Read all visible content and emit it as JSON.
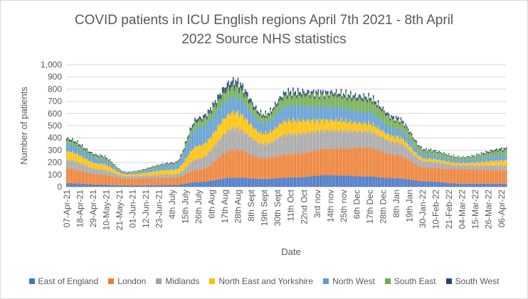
{
  "chart_data": {
    "type": "bar",
    "stacked": true,
    "title_line1": "COVID patients in ICU English regions April 7th 2021 - 8th April",
    "title_line2": "2022  Source NHS statistics",
    "xlabel": "Date",
    "ylabel": "Number of patients",
    "ylim": [
      0,
      1000
    ],
    "yticks": [
      "0",
      "100",
      "200",
      "300",
      "400",
      "500",
      "600",
      "700",
      "800",
      "900",
      "1,000"
    ],
    "grid": true,
    "legend_position": "bottom",
    "x_tick_labels": [
      "07-Apr-21",
      "18-Apr-21",
      "29-Apr-21",
      "10-May-21",
      "21-May-21",
      "01-Jun-21",
      "12-Jun-21",
      "23-Jun-21",
      "4th July",
      "15th July",
      "26th July",
      "6th Aug",
      "17th Aug",
      "28th Aug",
      "8th Sept",
      "19th Sept",
      "30th Sept",
      "11th Oct",
      "22nd Oct",
      "3rd nov",
      "14th nov",
      "25th nov",
      "6th Dec",
      "17th Dec",
      "28th Dec",
      "8th Jan",
      "19th Jan",
      "30-Jan-22",
      "10-Feb-22",
      "21-Feb-22",
      "04-Mar-22",
      "15-Mar-22",
      "26-Mar-22",
      "06-Apr-22"
    ],
    "x_tick_every_days": 11,
    "total_days": 367,
    "series": [
      {
        "name": "East of England",
        "color": "#4472c4",
        "knots": [
          [
            0,
            30
          ],
          [
            28,
            18
          ],
          [
            50,
            12
          ],
          [
            90,
            15
          ],
          [
            110,
            40
          ],
          [
            140,
            75
          ],
          [
            165,
            65
          ],
          [
            185,
            75
          ],
          [
            220,
            95
          ],
          [
            250,
            85
          ],
          [
            275,
            70
          ],
          [
            300,
            45
          ],
          [
            330,
            25
          ],
          [
            367,
            25
          ]
        ]
      },
      {
        "name": "London",
        "color": "#ed7d31",
        "knots": [
          [
            0,
            120
          ],
          [
            28,
            80
          ],
          [
            50,
            55
          ],
          [
            90,
            60
          ],
          [
            110,
            100
          ],
          [
            140,
            230
          ],
          [
            165,
            170
          ],
          [
            185,
            190
          ],
          [
            220,
            215
          ],
          [
            250,
            235
          ],
          [
            275,
            190
          ],
          [
            300,
            110
          ],
          [
            330,
            120
          ],
          [
            367,
            110
          ]
        ]
      },
      {
        "name": "Midlands",
        "color": "#a5a5a5",
        "knots": [
          [
            0,
            70
          ],
          [
            28,
            45
          ],
          [
            50,
            20
          ],
          [
            90,
            25
          ],
          [
            110,
            90
          ],
          [
            140,
            175
          ],
          [
            165,
            115
          ],
          [
            185,
            165
          ],
          [
            220,
            150
          ],
          [
            250,
            135
          ],
          [
            275,
            105
          ],
          [
            300,
            50
          ],
          [
            330,
            30
          ],
          [
            367,
            40
          ]
        ]
      },
      {
        "name": "North East and Yorkshire",
        "color": "#ffc000",
        "knots": [
          [
            0,
            70
          ],
          [
            28,
            45
          ],
          [
            50,
            15
          ],
          [
            90,
            40
          ],
          [
            110,
            105
          ],
          [
            140,
            130
          ],
          [
            165,
            85
          ],
          [
            185,
            110
          ],
          [
            220,
            85
          ],
          [
            250,
            65
          ],
          [
            275,
            45
          ],
          [
            300,
            25
          ],
          [
            330,
            20
          ],
          [
            367,
            40
          ]
        ]
      },
      {
        "name": "North West",
        "color": "#5b9bd5",
        "knots": [
          [
            0,
            60
          ],
          [
            28,
            40
          ],
          [
            50,
            10
          ],
          [
            90,
            40
          ],
          [
            110,
            150
          ],
          [
            140,
            125
          ],
          [
            165,
            90
          ],
          [
            185,
            125
          ],
          [
            220,
            110
          ],
          [
            250,
            95
          ],
          [
            275,
            65
          ],
          [
            300,
            35
          ],
          [
            330,
            25
          ],
          [
            367,
            45
          ]
        ]
      },
      {
        "name": "South East",
        "color": "#70ad47",
        "knots": [
          [
            0,
            30
          ],
          [
            28,
            20
          ],
          [
            50,
            6
          ],
          [
            90,
            10
          ],
          [
            110,
            55
          ],
          [
            140,
            85
          ],
          [
            165,
            50
          ],
          [
            185,
            85
          ],
          [
            220,
            95
          ],
          [
            250,
            100
          ],
          [
            275,
            70
          ],
          [
            300,
            30
          ],
          [
            330,
            20
          ],
          [
            367,
            40
          ]
        ]
      },
      {
        "name": "South West",
        "color": "#264478",
        "knots": [
          [
            0,
            15
          ],
          [
            28,
            10
          ],
          [
            50,
            4
          ],
          [
            90,
            8
          ],
          [
            110,
            25
          ],
          [
            140,
            50
          ],
          [
            165,
            20
          ],
          [
            185,
            30
          ],
          [
            220,
            25
          ],
          [
            250,
            25
          ],
          [
            275,
            22
          ],
          [
            300,
            10
          ],
          [
            330,
            5
          ],
          [
            367,
            15
          ]
        ]
      }
    ]
  }
}
